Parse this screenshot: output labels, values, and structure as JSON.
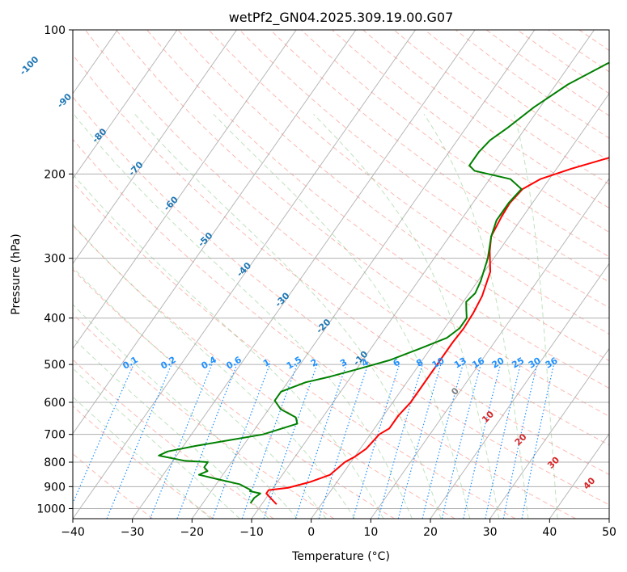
{
  "chart_data": {
    "type": "line",
    "title": "wetPf2_GN04.2025.309.19.00.G07",
    "xlabel": "Temperature (°C)",
    "ylabel": "Pressure (hPa)",
    "xlim": [
      -40,
      50
    ],
    "ylim": [
      1050,
      100
    ],
    "y_scale": "log",
    "grid": true,
    "x_ticks": [
      -40,
      -30,
      -20,
      -10,
      0,
      10,
      20,
      30,
      40,
      50
    ],
    "x_tick_labels": [
      "−40",
      "−30",
      "−20",
      "−10",
      "0",
      "10",
      "20",
      "30",
      "40",
      "50"
    ],
    "y_ticks": [
      100,
      200,
      300,
      400,
      500,
      600,
      700,
      800,
      900,
      1000
    ],
    "y_tick_labels": [
      "100",
      "200",
      "300",
      "400",
      "500",
      "600",
      "700",
      "800",
      "900",
      "1000"
    ],
    "series": [
      {
        "color": "#ff0000",
        "points": [
          [
            -7.5,
            980
          ],
          [
            -10.5,
            930
          ],
          [
            -10.5,
            915
          ],
          [
            -7.5,
            905
          ],
          [
            -4.5,
            880
          ],
          [
            -2,
            850
          ],
          [
            -1,
            800
          ],
          [
            0,
            780
          ],
          [
            1,
            750
          ],
          [
            1.5,
            700
          ],
          [
            2.5,
            680
          ],
          [
            2.5,
            640
          ],
          [
            3,
            600
          ],
          [
            3,
            550
          ],
          [
            3,
            500
          ],
          [
            3,
            450
          ],
          [
            3.2,
            420
          ],
          [
            3,
            390
          ],
          [
            2.5,
            360
          ],
          [
            1,
            320
          ],
          [
            -1.5,
            290
          ],
          [
            -3,
            270
          ],
          [
            -3.6,
            245
          ],
          [
            -3.8,
            230
          ],
          [
            -3.3,
            215
          ],
          [
            -1.5,
            205
          ],
          [
            2.5,
            195
          ],
          [
            7.5,
            185
          ],
          [
            11.5,
            170
          ],
          [
            14.5,
            155
          ],
          [
            17.5,
            140
          ],
          [
            20.5,
            127
          ],
          [
            24.5,
            120
          ],
          [
            27.5,
            112
          ],
          [
            29.5,
            105
          ],
          [
            31,
            100
          ]
        ]
      },
      {
        "color": "#008000",
        "points": [
          [
            -12,
            975
          ],
          [
            -12,
            950
          ],
          [
            -11.5,
            930
          ],
          [
            -13.5,
            920
          ],
          [
            -13.5,
            915
          ],
          [
            -16,
            890
          ],
          [
            -20,
            870
          ],
          [
            -24,
            850
          ],
          [
            -23,
            835
          ],
          [
            -24,
            820
          ],
          [
            -24,
            800
          ],
          [
            -28,
            795
          ],
          [
            -33,
            775
          ],
          [
            -32,
            760
          ],
          [
            -28,
            740
          ],
          [
            -23,
            720
          ],
          [
            -18,
            700
          ],
          [
            -13.5,
            665
          ],
          [
            -14.5,
            645
          ],
          [
            -18,
            620
          ],
          [
            -20,
            595
          ],
          [
            -20,
            570
          ],
          [
            -17,
            545
          ],
          [
            -13.5,
            530
          ],
          [
            -9.5,
            510
          ],
          [
            -5.5,
            490
          ],
          [
            -2,
            465
          ],
          [
            1.5,
            440
          ],
          [
            2.5,
            420
          ],
          [
            2.5,
            400
          ],
          [
            1.5,
            385
          ],
          [
            0.5,
            370
          ],
          [
            1,
            355
          ],
          [
            0.5,
            335
          ],
          [
            -1,
            300
          ],
          [
            -3,
            270
          ],
          [
            -4,
            250
          ],
          [
            -4,
            230
          ],
          [
            -3.5,
            215
          ],
          [
            -6.5,
            205
          ],
          [
            -13.5,
            197
          ],
          [
            -15,
            192
          ],
          [
            -15,
            180
          ],
          [
            -14.5,
            170
          ],
          [
            -13,
            160
          ],
          [
            -11,
            145
          ],
          [
            -8,
            130
          ],
          [
            -4,
            118
          ],
          [
            -0.5,
            110
          ],
          [
            2.5,
            100
          ]
        ]
      }
    ],
    "isotherm_labels": [
      "-100",
      "-90",
      "-80",
      "-70",
      "-60",
      "-50",
      "-40",
      "-30",
      "-20",
      "-10"
    ],
    "mixing_ratio_labels": [
      "0.1",
      "0.2",
      "0.4",
      "0.6",
      "1",
      "1.5",
      "2",
      "3",
      "4",
      "6",
      "8",
      "10",
      "13",
      "16",
      "20",
      "25",
      "30",
      "36"
    ],
    "wet_bulb_labels": [
      "0",
      "10",
      "20",
      "30",
      "40"
    ],
    "colors": {
      "temperature": "#ff0000",
      "dewpoint": "#008000",
      "skewed_isotherm_label": "#1f77b4",
      "mixing_ratio": "#1e90ff",
      "dry_adiabat": "#fa8072",
      "moist_adiabat": "#2ca02c",
      "wet_bulb_label_red": "#d62728",
      "wet_bulb_label_grey": "#808080"
    }
  }
}
